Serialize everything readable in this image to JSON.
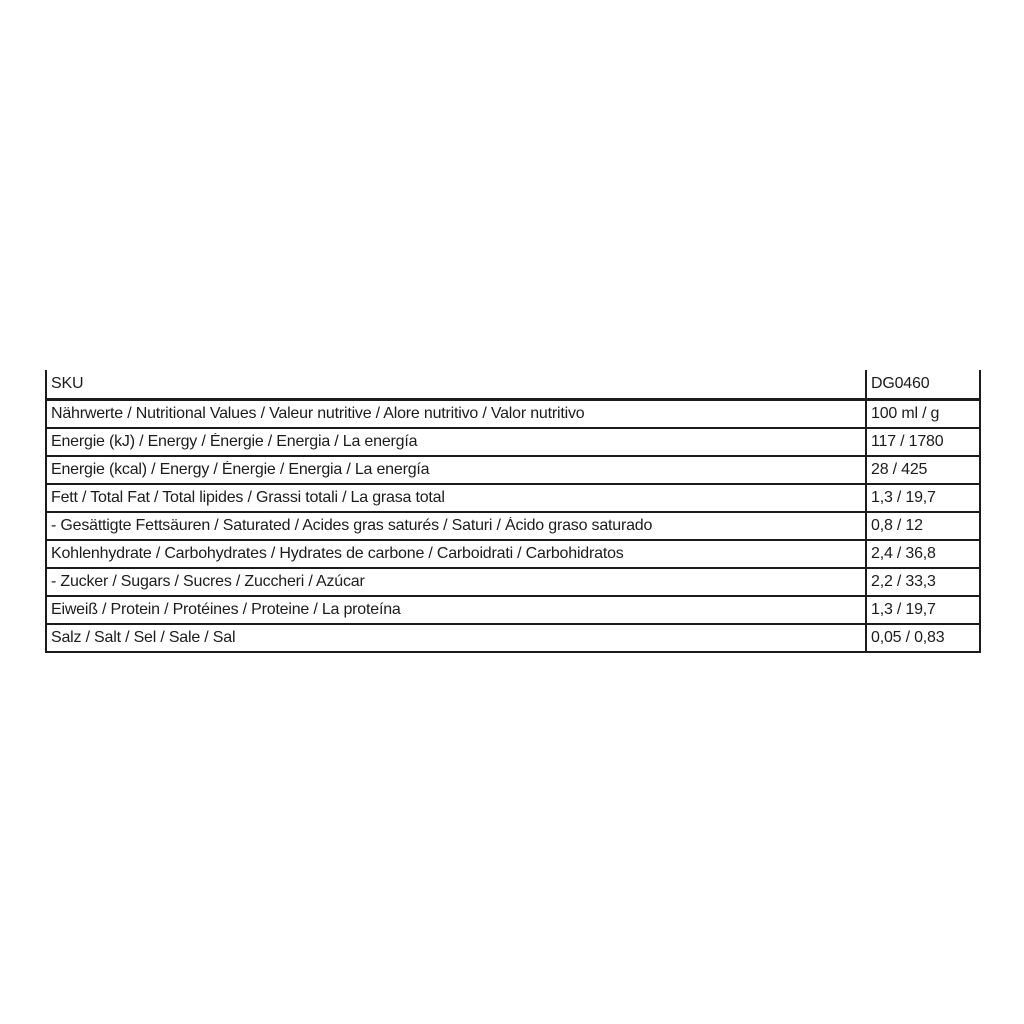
{
  "page": {
    "background_color": "#ffffff",
    "text_color": "#1c1c1c",
    "border_color": "#1c1c1c"
  },
  "table": {
    "header": {
      "label": "SKU",
      "value": "DG0460"
    },
    "rows": [
      {
        "label": "Nährwerte / Nutritional Values / Valeur nutritive / Alore nutritivo / Valor nutritivo",
        "value": "100 ml / g"
      },
      {
        "label": "Energie (kJ) / Energy / Énergie / Energia / La energía",
        "value": "117 / 1780"
      },
      {
        "label": "Energie (kcal) / Energy / Énergie / Energia / La energía",
        "value": "28 / 425"
      },
      {
        "label": "Fett / Total Fat / Total lipides / Grassi totali / La grasa total",
        "value": "1,3 / 19,7"
      },
      {
        "label": "- Gesättigte Fettsäuren / Saturated / Acides gras saturés / Saturi / Ácido graso saturado",
        "value": "0,8 / 12"
      },
      {
        "label": "Kohlenhydrate / Carbohydrates / Hydrates de carbone / Carboidrati / Carbohidratos",
        "value": "2,4 / 36,8"
      },
      {
        "label": "- Zucker / Sugars / Sucres / Zuccheri / Azúcar",
        "value": "2,2 / 33,3"
      },
      {
        "label": "Eiweiß / Protein / Protéines / Proteine / La proteína",
        "value": "1,3 / 19,7"
      },
      {
        "label": "Salz / Salt / Sel / Sale / Sal",
        "value": "0,05 / 0,83"
      }
    ]
  }
}
